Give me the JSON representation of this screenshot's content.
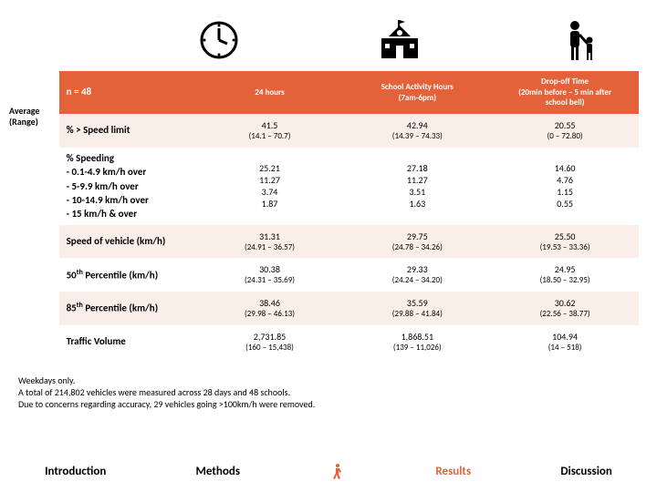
{
  "colors": {
    "accent": "#e4623a",
    "row_odd": "#faeee8",
    "row_even": "#ffffff",
    "text": "#000000"
  },
  "typography": {
    "base_font": "Calibri, Arial, sans-serif",
    "header_fs": 9,
    "cell_fs": 10,
    "nav_fs": 13
  },
  "side_label": {
    "line1": "Average",
    "line2": "(Range)"
  },
  "header": {
    "c0": "n = 48",
    "c1": "24 hours",
    "c2_line1": "School Activity Hours",
    "c2_line2": "(7am-6pm)",
    "c3_line1": "Drop-off Time",
    "c3_line2": "(20min before – 5 min after",
    "c3_line3": "school bell)"
  },
  "rows": [
    {
      "label": "% > Speed limit",
      "c1": "41.5",
      "c1s": "(14.1 – 70.7)",
      "c2": "42.94",
      "c2s": "(14.39 – 74.33)",
      "c3": "20.55",
      "c3s": "(0 – 72.80)"
    },
    {
      "label_multi": [
        "% Speeding",
        "- 0.1-4.9 km/h over",
        "- 5-9.9 km/h over",
        "- 10-14.9 km/h over",
        "- 15 km/h & over"
      ],
      "c1m": [
        "25.21",
        "11.27",
        "3.74",
        "1.87"
      ],
      "c2m": [
        "27.18",
        "11.27",
        "3.51",
        "1.63"
      ],
      "c3m": [
        "14.60",
        "4.76",
        "1.15",
        "0.55"
      ]
    },
    {
      "label": "Speed of vehicle (km/h)",
      "c1": "31.31",
      "c1s": "(24.91 – 36.57)",
      "c2": "29.75",
      "c2s": "(24.78 – 34.26)",
      "c3": "25.50",
      "c3s": "(19.53 – 33.36)"
    },
    {
      "label_html": "50<sup>th</sup> Percentile (km/h)",
      "c1": "30.38",
      "c1s": "(24.31 – 35.69)",
      "c2": "29.33",
      "c2s": "(24.24 – 34.20)",
      "c3": "24.95",
      "c3s": "(18.50 – 32.95)"
    },
    {
      "label_html": "85<sup>th</sup> Percentile (km/h)",
      "c1": "38.46",
      "c1s": "(29.98 – 46.13)",
      "c2": "35.59",
      "c2s": "(29.88 – 41.84)",
      "c3": "30.62",
      "c3s": "(22.56 – 38.77)"
    },
    {
      "label": "Traffic Volume",
      "c1": "2,731.85",
      "c1s": "(160 – 15,438)",
      "c2": "1,868.51",
      "c2s": "(139 – 11,026)",
      "c3": "104.94",
      "c3s": "(14 – 518)"
    }
  ],
  "footnote": {
    "l1": "Weekdays only.",
    "l2": "A total of 214,802 vehicles were measured across 28 days and 48 schools.",
    "l3": "Due to concerns regarding accuracy, 29 vehicles going >100km/h were removed."
  },
  "nav": {
    "intro": "Introduction",
    "methods": "Methods",
    "results": "Results",
    "discussion": "Discussion",
    "active": "results"
  }
}
